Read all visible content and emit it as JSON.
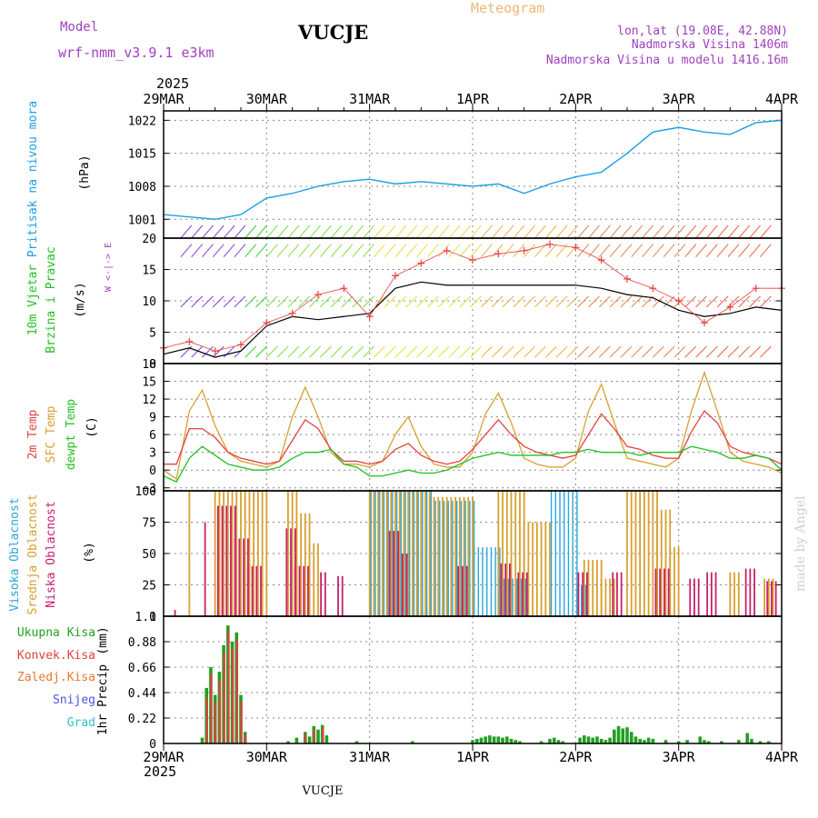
{
  "header": {
    "model_label": "Model",
    "model_name": "wrf-nmm_v3.9.1 e3km",
    "station": "VUCJE",
    "meteogram": "Meteogram",
    "coords": "lon,lat (19.08E, 42.88N)",
    "elev": "Nadmorska Visina 1406m",
    "elev_model": "Nadmorska Visina u modelu 1416.16m",
    "footer_station": "VUCJE",
    "credit": "made by Angel"
  },
  "time_axis": {
    "year_top": "2025",
    "year_bottom": "2025",
    "dates": [
      "29MAR",
      "30MAR",
      "31MAR",
      "1APR",
      "2APR",
      "3APR",
      "4APR"
    ]
  },
  "colors": {
    "pressure": "#19a0e6",
    "t2m": "#e84040",
    "sfc": "#d8a030",
    "dew": "#20c020",
    "cloud_high": "#2aa6d8",
    "cloud_mid": "#d8a030",
    "cloud_low": "#c8206a",
    "rain_total": "#20a020",
    "rain_conv": "#e04040",
    "rain_frz": "#e87830",
    "snow": "#5050e0",
    "hail": "#30c0c0"
  },
  "chart_data": [
    {
      "type": "line",
      "id": "pressure",
      "ylabel": "Pritisak na nivou mora",
      "unit": "(hPa)",
      "ylim": [
        997,
        1024
      ],
      "yticks": [
        1001,
        1008,
        1015,
        1022
      ],
      "x_hours": [
        0,
        6,
        12,
        18,
        24,
        30,
        36,
        42,
        48,
        54,
        60,
        66,
        72,
        78,
        84,
        90,
        96,
        102,
        108,
        114,
        120,
        126,
        132,
        138,
        144
      ],
      "series": [
        {
          "name": "MSLP",
          "values": [
            1002,
            1001.5,
            1001,
            1002,
            1005.5,
            1006.5,
            1008,
            1009,
            1009.5,
            1008.5,
            1009,
            1008.5,
            1008,
            1008.5,
            1006.5,
            1008.5,
            1010,
            1011,
            1015,
            1019.5,
            1020.5,
            1019.5,
            1019,
            1021.5,
            1022
          ]
        }
      ]
    },
    {
      "type": "line",
      "id": "wind",
      "ylabel": "10m Vjetar",
      "ylabel2": "Brzina i Pravac",
      "unit": "(m/s)",
      "dir_legend": "W <-|-> E",
      "ylim": [
        0,
        20
      ],
      "yticks": [
        0,
        5,
        10,
        15,
        20
      ],
      "x_hours": [
        0,
        6,
        12,
        18,
        24,
        30,
        36,
        42,
        48,
        54,
        60,
        66,
        72,
        78,
        84,
        90,
        96,
        102,
        108,
        114,
        120,
        126,
        132,
        138,
        144
      ],
      "series": [
        {
          "name": "speed",
          "values": [
            1.5,
            2.5,
            1,
            2,
            6,
            7.5,
            7,
            7.5,
            8,
            12,
            13,
            12.5,
            12.5,
            12.5,
            12.5,
            12.5,
            12.5,
            12,
            11,
            10.5,
            8.5,
            7.5,
            8,
            9,
            8.5
          ]
        },
        {
          "name": "gust",
          "values": [
            2.5,
            3.5,
            2,
            3,
            6.5,
            8,
            11,
            12,
            7.5,
            14,
            16,
            18,
            16.5,
            17.5,
            18,
            19,
            18.5,
            16.5,
            13.5,
            12,
            10,
            6.5,
            9,
            12,
            12
          ]
        }
      ]
    },
    {
      "type": "line",
      "id": "temperature",
      "ylabel": "2m Temp",
      "ylabel2": "SFC Temp",
      "ylabel3": "dewpt Temp",
      "unit": "(C)",
      "ylim": [
        -3.5,
        18
      ],
      "yticks": [
        -3,
        0,
        3,
        6,
        9,
        12,
        15,
        18
      ],
      "x_hours": [
        0,
        3,
        6,
        9,
        12,
        15,
        18,
        21,
        24,
        27,
        30,
        33,
        36,
        39,
        42,
        45,
        48,
        51,
        54,
        57,
        60,
        63,
        66,
        69,
        72,
        75,
        78,
        81,
        84,
        87,
        90,
        93,
        96,
        99,
        102,
        105,
        108,
        111,
        114,
        117,
        120,
        123,
        126,
        129,
        132,
        135,
        138,
        141,
        144
      ],
      "series": [
        {
          "name": "2m Temp",
          "values": [
            1,
            1,
            7,
            7,
            5.5,
            3,
            2,
            1.5,
            1,
            1.5,
            5,
            8.5,
            7,
            3.5,
            1.5,
            1.5,
            1,
            1.5,
            3.5,
            4.5,
            2.5,
            1.5,
            1,
            1.5,
            3.5,
            6,
            8.5,
            6,
            4,
            3,
            2.5,
            2,
            2.5,
            6,
            9.5,
            7,
            4,
            3.5,
            2.5,
            2,
            2,
            6.5,
            10,
            8,
            4,
            3,
            2.5,
            2,
            1
          ]
        },
        {
          "name": "SFC Temp",
          "values": [
            0,
            -1.5,
            10,
            13.5,
            7.5,
            3,
            1.5,
            1,
            0.5,
            1.5,
            9,
            14,
            9,
            3,
            1,
            1,
            0.5,
            1.5,
            6,
            9,
            4,
            1,
            0.5,
            0.5,
            3,
            9.5,
            13,
            8,
            2,
            1,
            0.5,
            0.5,
            2,
            10,
            14.5,
            8,
            2,
            1.5,
            1,
            0.5,
            2,
            10,
            16.5,
            10,
            3,
            1.5,
            1,
            0.5,
            -0.5
          ]
        },
        {
          "name": "dewpt Temp",
          "values": [
            -1,
            -2,
            2,
            4,
            2.5,
            1,
            0.5,
            0,
            0,
            0.5,
            2,
            3,
            3,
            3.5,
            1,
            0.5,
            -1,
            -1,
            -0.5,
            0,
            -0.5,
            -0.5,
            0,
            1,
            2,
            2.5,
            3,
            2.5,
            2.5,
            2.5,
            2.5,
            3,
            3,
            3.5,
            3,
            3,
            3,
            2.5,
            3,
            3,
            3,
            4,
            3.5,
            3,
            2,
            2,
            2.5,
            2,
            0
          ]
        }
      ]
    },
    {
      "type": "bar",
      "id": "clouds",
      "ylabel": "Visoka Oblacnost",
      "ylabel2": "Srednja Oblacnost",
      "ylabel3": "Niska Oblacnost",
      "unit": "(%)",
      "ylim": [
        0,
        100
      ],
      "yticks": [
        0,
        25,
        50,
        75,
        100
      ],
      "series": [
        {
          "name": "high",
          "segments": [
            [
              48,
              62,
              100
            ],
            [
              62,
              72,
              92
            ],
            [
              72,
              78,
              55
            ],
            [
              78,
              84,
              30
            ],
            [
              90,
              96,
              100
            ],
            [
              96,
              98,
              25
            ]
          ]
        },
        {
          "name": "mid",
          "segments": [
            [
              6,
              6.5,
              100
            ],
            [
              12,
              24,
              100
            ],
            [
              29,
              31,
              100
            ],
            [
              31,
              34,
              82
            ],
            [
              34,
              36,
              58
            ],
            [
              48,
              62,
              100
            ],
            [
              62,
              72,
              95
            ],
            [
              78,
              84,
              100
            ],
            [
              84,
              90,
              75
            ],
            [
              98,
              102,
              45
            ],
            [
              102,
              105,
              30
            ],
            [
              108,
              115,
              100
            ],
            [
              115,
              118,
              85
            ],
            [
              118,
              120,
              55
            ],
            [
              132,
              134,
              35
            ],
            [
              140,
              142,
              30
            ]
          ]
        },
        {
          "name": "low",
          "segments": [
            [
              2,
              2.5,
              5
            ],
            [
              9,
              9.5,
              75
            ],
            [
              12,
              16,
              88
            ],
            [
              16,
              19,
              62
            ],
            [
              19,
              22,
              40
            ],
            [
              28,
              30,
              70
            ],
            [
              30,
              33,
              40
            ],
            [
              36,
              37,
              35
            ],
            [
              40,
              41,
              32
            ],
            [
              52,
              54,
              68
            ],
            [
              54,
              56,
              50
            ],
            [
              68,
              70,
              40
            ],
            [
              78,
              80,
              42
            ],
            [
              82,
              84,
              35
            ],
            [
              96,
              98,
              35
            ],
            [
              104,
              106,
              35
            ],
            [
              114,
              117,
              38
            ],
            [
              122,
              124,
              30
            ],
            [
              126,
              128,
              35
            ],
            [
              135,
              137,
              38
            ],
            [
              140,
              142,
              28
            ]
          ]
        }
      ]
    },
    {
      "type": "bar",
      "id": "precip",
      "ylabel": "1hr Precip",
      "unit": "(mm)",
      "legend": [
        "Ukupna Kisa",
        "Konvek.Kisa",
        "Zaledj.Kisa",
        "Snijeg",
        "Grad"
      ],
      "ylim": [
        0,
        1.1
      ],
      "yticks": [
        0,
        0.22,
        0.44,
        0.66,
        0.88,
        1.1
      ],
      "series": [
        {
          "name": "Ukupna Kisa",
          "values": [
            [
              9,
              0.05
            ],
            [
              10,
              0.48
            ],
            [
              11,
              0.66
            ],
            [
              12,
              0.42
            ],
            [
              13,
              0.62
            ],
            [
              14,
              0.85
            ],
            [
              15,
              1.02
            ],
            [
              16,
              0.88
            ],
            [
              17,
              0.96
            ],
            [
              18,
              0.42
            ],
            [
              19,
              0.1
            ],
            [
              29,
              0.02
            ],
            [
              31,
              0.05
            ],
            [
              33,
              0.1
            ],
            [
              34,
              0.06
            ],
            [
              35,
              0.15
            ],
            [
              36,
              0.12
            ],
            [
              37,
              0.16
            ],
            [
              38,
              0.07
            ],
            [
              45,
              0.02
            ],
            [
              58,
              0.02
            ],
            [
              72,
              0.03
            ],
            [
              73,
              0.04
            ],
            [
              74,
              0.05
            ],
            [
              75,
              0.06
            ],
            [
              76,
              0.07
            ],
            [
              77,
              0.06
            ],
            [
              78,
              0.06
            ],
            [
              79,
              0.05
            ],
            [
              80,
              0.06
            ],
            [
              81,
              0.04
            ],
            [
              82,
              0.03
            ],
            [
              83,
              0.02
            ],
            [
              88,
              0.02
            ],
            [
              90,
              0.04
            ],
            [
              91,
              0.05
            ],
            [
              92,
              0.03
            ],
            [
              93,
              0.02
            ],
            [
              97,
              0.05
            ],
            [
              98,
              0.07
            ],
            [
              99,
              0.06
            ],
            [
              100,
              0.05
            ],
            [
              101,
              0.06
            ],
            [
              102,
              0.04
            ],
            [
              103,
              0.03
            ],
            [
              104,
              0.05
            ],
            [
              105,
              0.12
            ],
            [
              106,
              0.15
            ],
            [
              107,
              0.13
            ],
            [
              108,
              0.14
            ],
            [
              109,
              0.1
            ],
            [
              110,
              0.06
            ],
            [
              111,
              0.04
            ],
            [
              112,
              0.03
            ],
            [
              113,
              0.05
            ],
            [
              114,
              0.04
            ],
            [
              117,
              0.03
            ],
            [
              120,
              0.02
            ],
            [
              122,
              0.03
            ],
            [
              125,
              0.06
            ],
            [
              126,
              0.03
            ],
            [
              127,
              0.02
            ],
            [
              130,
              0.02
            ],
            [
              134,
              0.03
            ],
            [
              136,
              0.09
            ],
            [
              137,
              0.04
            ],
            [
              139,
              0.02
            ],
            [
              141,
              0.02
            ]
          ]
        },
        {
          "name": "Konvek.Kisa",
          "values": [
            [
              10,
              0.4
            ],
            [
              11,
              0.6
            ],
            [
              12,
              0.36
            ],
            [
              13,
              0.55
            ],
            [
              14,
              0.78
            ],
            [
              15,
              0.98
            ],
            [
              16,
              0.82
            ],
            [
              17,
              0.9
            ],
            [
              18,
              0.36
            ],
            [
              19,
              0.08
            ],
            [
              33,
              0.08
            ],
            [
              35,
              0.12
            ],
            [
              37,
              0.14
            ]
          ]
        },
        {
          "name": "Zaledj.Kisa",
          "values": []
        },
        {
          "name": "Snijeg",
          "values": []
        },
        {
          "name": "Grad",
          "values": []
        }
      ]
    }
  ]
}
